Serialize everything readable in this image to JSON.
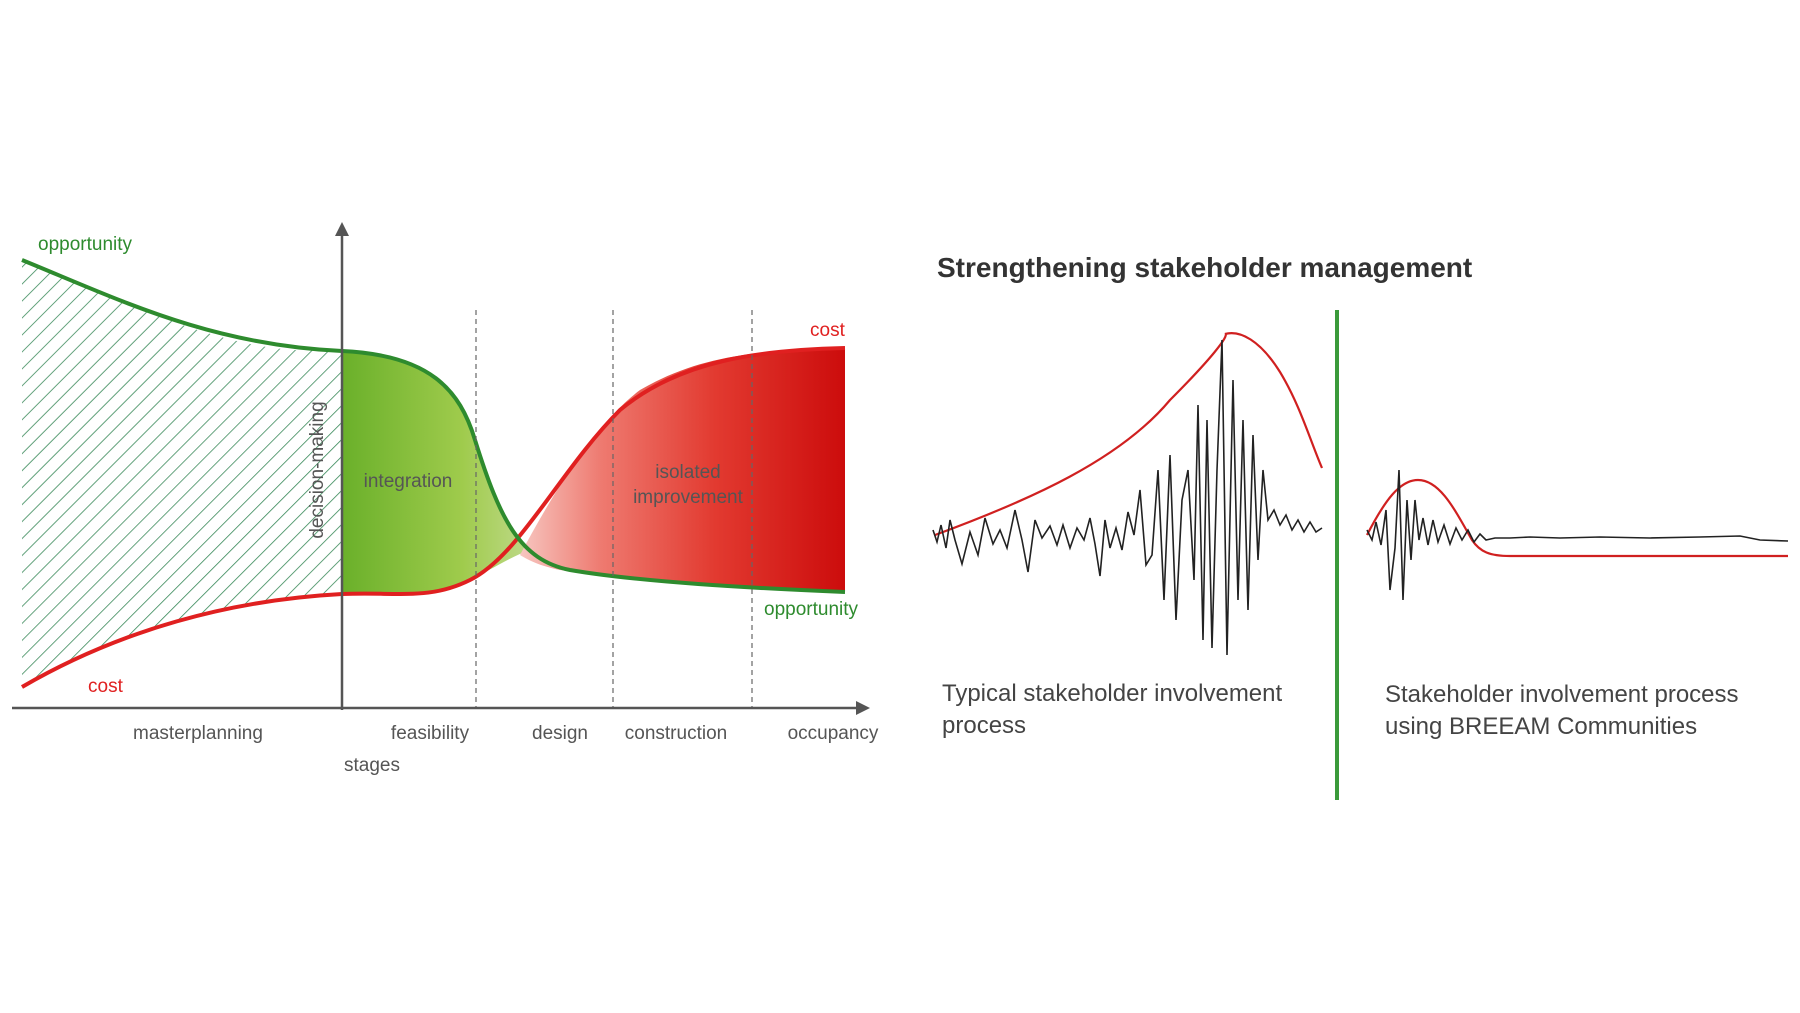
{
  "left_diagram": {
    "labels": {
      "opportunity_top": "opportunity",
      "cost_bottom": "cost",
      "decision_making": "decision-making",
      "integration": "integration",
      "isolated_line1": "isolated",
      "isolated_line2": "improvement",
      "cost_top": "cost",
      "opportunity_bottom": "opportunity",
      "stages_axis": "stages"
    },
    "stages": [
      "masterplanning",
      "feasibility",
      "design",
      "construction",
      "occupancy"
    ],
    "colors": {
      "opportunity": "#2e8b2e",
      "cost": "#e02020",
      "axis": "#555555",
      "hatch": "#3a8a5a",
      "label_text": "#555555"
    }
  },
  "right_diagram": {
    "title": "Strengthening stakeholder management",
    "caption_left_line1": "Typical stakeholder involvement",
    "caption_left_line2": "process",
    "caption_right_line1": "Stakeholder involvement process",
    "caption_right_line2": "using BREEAM Communities",
    "colors": {
      "divider": "#3a9a3a",
      "envelope": "#d02020",
      "signal": "#222222",
      "title_text": "#333333",
      "caption_text": "#444444"
    }
  }
}
